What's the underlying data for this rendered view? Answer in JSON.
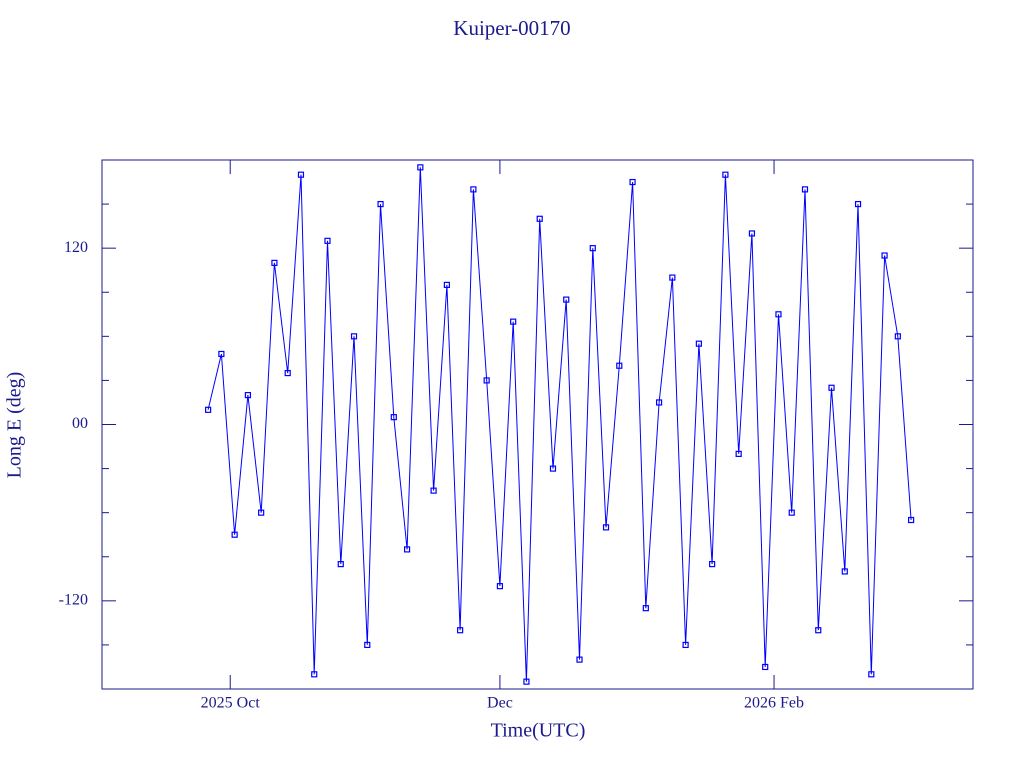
{
  "chart_data": {
    "type": "line",
    "title": "Kuiper-00170",
    "x_label": "Time(UTC)",
    "y_label": "Long E (deg)",
    "xlim": [
      "2025-09-02",
      "2026-03-18"
    ],
    "xticks": [
      {
        "value": "2025-10-01",
        "label": "2025 Oct"
      },
      {
        "value": "2025-12-01",
        "label": "Dec"
      },
      {
        "value": "2026-02-01",
        "label": "2026 Feb"
      }
    ],
    "ylim": [
      -180,
      180
    ],
    "yticks": [
      -120,
      {
        "value": 0,
        "label": "00"
      },
      120
    ],
    "yminorticks": [
      -150,
      -90,
      -60,
      -30,
      30,
      60,
      90,
      150
    ],
    "axis_color": "#1a1a8c",
    "markers": true,
    "series": [
      {
        "name": "Kuiper-00170",
        "color": "#0000ff",
        "x": [
          "2025-09-26",
          "2025-09-29",
          "2025-10-02",
          "2025-10-05",
          "2025-10-08",
          "2025-10-11",
          "2025-10-14",
          "2025-10-17",
          "2025-10-20",
          "2025-10-23",
          "2025-10-26",
          "2025-10-29",
          "2025-11-01",
          "2025-11-04",
          "2025-11-07",
          "2025-11-10",
          "2025-11-13",
          "2025-11-16",
          "2025-11-19",
          "2025-11-22",
          "2025-11-25",
          "2025-11-28",
          "2025-12-01",
          "2025-12-04",
          "2025-12-07",
          "2025-12-10",
          "2025-12-13",
          "2025-12-16",
          "2025-12-19",
          "2025-12-22",
          "2025-12-25",
          "2025-12-28",
          "2025-12-31",
          "2026-01-03",
          "2026-01-06",
          "2026-01-09",
          "2026-01-12",
          "2026-01-15",
          "2026-01-18",
          "2026-01-21",
          "2026-01-24",
          "2026-01-27",
          "2026-01-30",
          "2026-02-02",
          "2026-02-05",
          "2026-02-08",
          "2026-02-11",
          "2026-02-14",
          "2026-02-17",
          "2026-02-20",
          "2026-02-23",
          "2026-02-26",
          "2026-03-01",
          "2026-03-04"
        ],
        "values": [
          10,
          48,
          -75,
          20,
          -60,
          110,
          35,
          170,
          -170,
          125,
          -95,
          60,
          -150,
          150,
          5,
          -85,
          175,
          -45,
          95,
          -140,
          160,
          30,
          -110,
          70,
          -175,
          140,
          -30,
          85,
          -160,
          120,
          -70,
          40,
          165,
          -125,
          15,
          100,
          -150,
          55,
          -95,
          170,
          -20,
          130,
          -165,
          75,
          -60,
          160,
          -140,
          25,
          -100,
          150,
          -170,
          115,
          60,
          -65
        ]
      }
    ]
  }
}
